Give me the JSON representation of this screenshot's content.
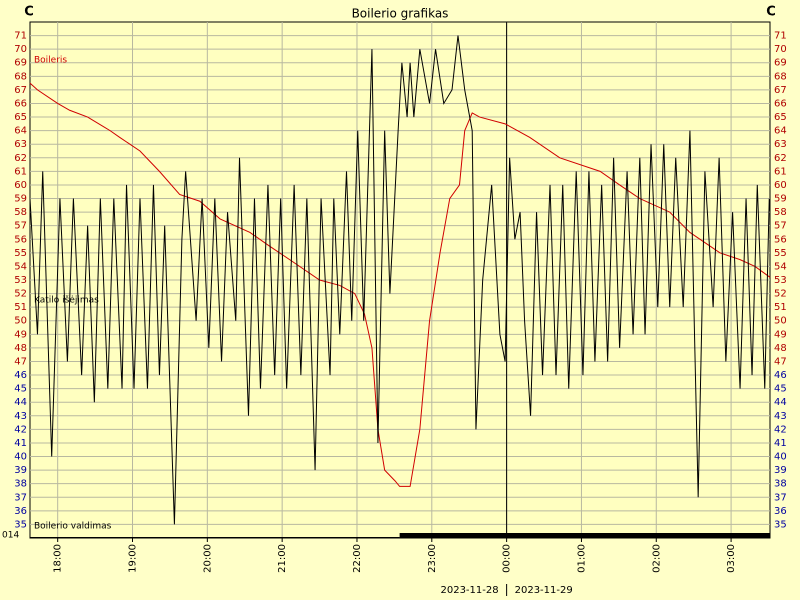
{
  "chart_data": {
    "type": "line",
    "title": "Boilerio grafikas",
    "y_unit_left": "C",
    "y_unit_right": "C",
    "xlim": [
      17.63,
      27.52
    ],
    "xticks": [
      {
        "value": 18,
        "label": "18:00"
      },
      {
        "value": 19,
        "label": "19:00"
      },
      {
        "value": 20,
        "label": "20:00"
      },
      {
        "value": 21,
        "label": "21:00"
      },
      {
        "value": 22,
        "label": "22:00"
      },
      {
        "value": 23,
        "label": "23:00"
      },
      {
        "value": 24,
        "label": "00:00"
      },
      {
        "value": 25,
        "label": "01:00"
      },
      {
        "value": 26,
        "label": "02:00"
      },
      {
        "value": 27,
        "label": "03:00"
      }
    ],
    "ylim": [
      34,
      72
    ],
    "yticks": [
      35,
      36,
      37,
      38,
      39,
      40,
      41,
      42,
      43,
      44,
      45,
      46,
      47,
      48,
      49,
      50,
      51,
      52,
      53,
      54,
      55,
      56,
      57,
      58,
      59,
      60,
      61,
      62,
      63,
      64,
      65,
      66,
      67,
      68,
      69,
      70,
      71
    ],
    "grid": true,
    "day_divider": 24,
    "dates": [
      "2023-11-28",
      "2023-11-29"
    ],
    "series": [
      {
        "name": "Boileris",
        "color": "#d00000",
        "x": [
          17.63,
          17.73,
          18.0,
          18.16,
          18.4,
          18.7,
          18.83,
          19.1,
          19.36,
          19.63,
          19.9,
          20.17,
          20.57,
          20.83,
          21.1,
          21.5,
          21.77,
          21.97,
          22.1,
          22.2,
          22.28,
          22.37,
          22.51,
          22.57,
          22.71,
          22.84,
          22.97,
          23.11,
          23.24,
          23.37,
          23.44,
          23.54,
          23.64,
          23.98,
          24.31,
          24.71,
          25.25,
          25.51,
          25.78,
          26.18,
          26.45,
          26.85,
          27.12,
          27.32,
          27.52
        ],
        "values": [
          67.5,
          67,
          66,
          65.5,
          65,
          64,
          63.5,
          62.5,
          61,
          59.3,
          58.8,
          57.5,
          56.5,
          55.5,
          54.5,
          53,
          52.6,
          52,
          50.5,
          48,
          42,
          39,
          38.2,
          37.8,
          37.8,
          42,
          50,
          55,
          59,
          60,
          64,
          65.3,
          65,
          64.5,
          63.5,
          62,
          61,
          60,
          59,
          58,
          56.5,
          55,
          54.5,
          54,
          53.2
        ]
      },
      {
        "name": "Katilo išėjimas",
        "color": "#000000",
        "x": [
          17.63,
          17.73,
          17.8,
          17.92,
          18.03,
          18.13,
          18.21,
          18.32,
          18.4,
          18.49,
          18.57,
          18.67,
          18.75,
          18.86,
          18.92,
          19.02,
          19.1,
          19.2,
          19.28,
          19.36,
          19.43,
          19.56,
          19.66,
          19.71,
          19.85,
          19.93,
          20.02,
          20.1,
          20.19,
          20.27,
          20.38,
          20.43,
          20.55,
          20.63,
          20.71,
          20.81,
          20.9,
          20.98,
          21.06,
          21.16,
          21.25,
          21.33,
          21.44,
          21.52,
          21.64,
          21.69,
          21.77,
          21.86,
          21.93,
          22.01,
          22.09,
          22.2,
          22.28,
          22.37,
          22.44,
          22.55,
          22.6,
          22.67,
          22.71,
          22.76,
          22.84,
          22.97,
          23.05,
          23.16,
          23.27,
          23.35,
          23.44,
          23.54,
          23.59,
          23.68,
          23.8,
          23.91,
          23.98,
          24.04,
          24.11,
          24.18,
          24.24,
          24.32,
          24.4,
          24.48,
          24.58,
          24.66,
          24.75,
          24.83,
          24.93,
          25.02,
          25.1,
          25.18,
          25.27,
          25.35,
          25.43,
          25.51,
          25.61,
          25.69,
          25.78,
          25.85,
          25.93,
          26.02,
          26.1,
          26.18,
          26.26,
          26.36,
          26.45,
          26.56,
          26.65,
          26.76,
          26.84,
          26.93,
          27.02,
          27.12,
          27.2,
          27.28,
          27.35,
          27.45,
          27.51
        ],
        "values": [
          59,
          49,
          61,
          40,
          59,
          47,
          59,
          46,
          57,
          44,
          59,
          45,
          59,
          45,
          60,
          45,
          59,
          45,
          60,
          46,
          57,
          35,
          56,
          61,
          50,
          59,
          48,
          59,
          47,
          58,
          50,
          62,
          43,
          59,
          45,
          60,
          46,
          59,
          45,
          60,
          46,
          59,
          39,
          59,
          46,
          59,
          49,
          61,
          50,
          64,
          50,
          70,
          41,
          64,
          52,
          64,
          69,
          65,
          69,
          65,
          70,
          66,
          70,
          66,
          67,
          71,
          67,
          64,
          42,
          53,
          60,
          49,
          47,
          62,
          56,
          58,
          50,
          43,
          58,
          46,
          60,
          46,
          60,
          45,
          61,
          46,
          61,
          47,
          60,
          47,
          62,
          48,
          61,
          49,
          62,
          49,
          63,
          51,
          63,
          51,
          62,
          51,
          64,
          37,
          61,
          51,
          62,
          47,
          58,
          45,
          59,
          46,
          60,
          45,
          59
        ]
      }
    ],
    "control": {
      "name": "Boilerio valdimas",
      "label": "014",
      "x": [
        17.63,
        22.57,
        27.52
      ],
      "values": [
        0,
        1,
        1
      ]
    }
  }
}
